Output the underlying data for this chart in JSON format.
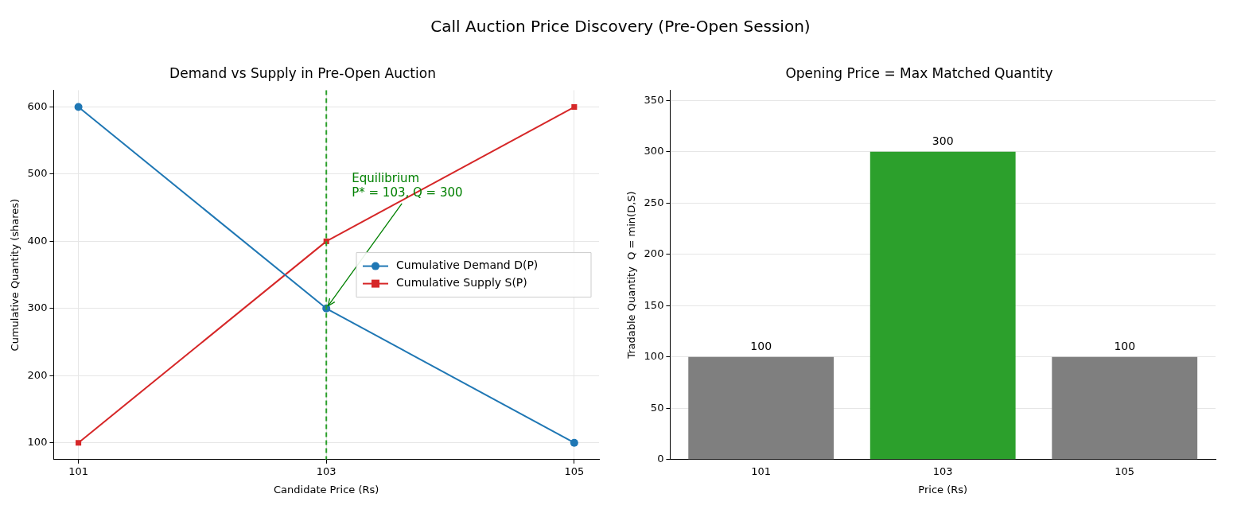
{
  "chart_data": [
    {
      "type": "line",
      "title": "Demand vs Supply in Pre-Open Auction",
      "xlabel": "Candidate Price (Rs)",
      "ylabel": "Cumulative Quantity (shares)",
      "x": [
        101,
        103,
        105
      ],
      "series": [
        {
          "name": "Cumulative Demand D(P)",
          "color": "#1f77b4",
          "values": [
            600,
            300,
            100
          ],
          "marker": "circle"
        },
        {
          "name": "Cumulative Supply S(P)",
          "color": "#d62728",
          "values": [
            100,
            400,
            600
          ],
          "marker": "square"
        }
      ],
      "xlim": [
        100.8,
        105.2
      ],
      "xticks": [
        101,
        103,
        105
      ],
      "ylim": [
        75,
        625
      ],
      "yticks": [
        100,
        200,
        300,
        400,
        500,
        600
      ],
      "grid": true,
      "legend": "right",
      "line_style": "solid",
      "ref_lines": [
        {
          "axis": "x",
          "value": 103,
          "color": "#2ca02c",
          "line_style": "dashed"
        }
      ],
      "annotations": [
        "Call Auction Price Discovery (Pre-Open Session)",
        {
          "text": "Equilibrium\nP* = 103, Q = 300",
          "x": 103,
          "y": 300
        }
      ]
    },
    {
      "type": "bar",
      "title": "Opening Price = Max Matched Quantity",
      "xlabel": "Price (Rs)",
      "ylabel": "Tradable Quantity  Q = min(D,S)",
      "categories": [
        "101",
        "103",
        "105"
      ],
      "values": [
        100,
        300,
        100
      ],
      "colors": [
        "#7f7f7f",
        "#2ca02c",
        "#7f7f7f"
      ],
      "ylim": [
        0,
        360
      ],
      "yticks": [
        0,
        50,
        100,
        150,
        200,
        250,
        300,
        350
      ],
      "grid": "y",
      "data_labels": true
    }
  ]
}
